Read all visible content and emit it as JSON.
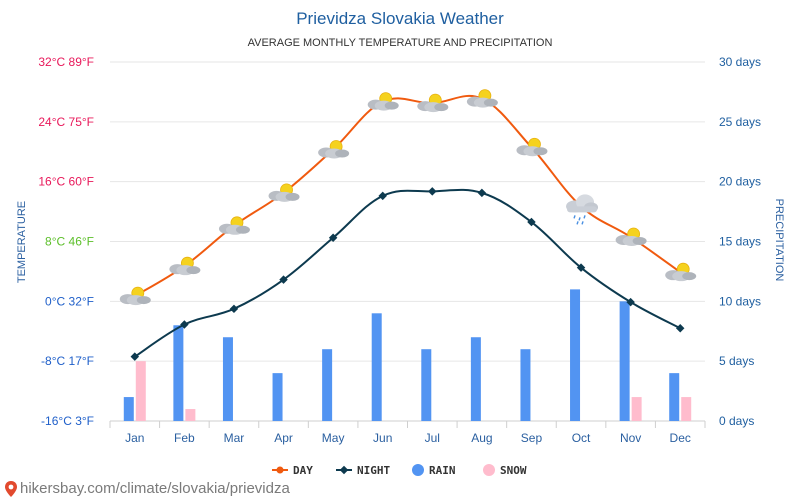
{
  "chart_data": {
    "type": "line",
    "title": "Prievidza Slovakia Weather",
    "subtitle": "AVERAGE MONTHLY TEMPERATURE AND PRECIPITATION",
    "ylabel_left": "TEMPERATURE",
    "ylabel_right": "PRECIPITATION",
    "categories": [
      "Jan",
      "Feb",
      "Mar",
      "Apr",
      "May",
      "Jun",
      "Jul",
      "Aug",
      "Sep",
      "Oct",
      "Nov",
      "Dec"
    ],
    "left_axis": {
      "min": -16,
      "max": 32,
      "ticks": [
        {
          "value": 32,
          "label": "32°C 89°F",
          "color": "#e8185a"
        },
        {
          "value": 24,
          "label": "24°C 75°F",
          "color": "#e8185a"
        },
        {
          "value": 16,
          "label": "16°C 60°F",
          "color": "#e8185a"
        },
        {
          "value": 8,
          "label": "8°C 46°F",
          "color": "#5cbf2a"
        },
        {
          "value": 0,
          "label": "0°C 32°F",
          "color": "#1f5fc9"
        },
        {
          "value": -8,
          "label": "-8°C 17°F",
          "color": "#1f5fc9"
        },
        {
          "value": -16,
          "label": "-16°C 3°F",
          "color": "#1f5fc9"
        }
      ]
    },
    "right_axis": {
      "min": 0,
      "max": 30,
      "ticks": [
        {
          "value": 30,
          "label": "30 days"
        },
        {
          "value": 25,
          "label": "25 days"
        },
        {
          "value": 20,
          "label": "20 days"
        },
        {
          "value": 15,
          "label": "15 days"
        },
        {
          "value": 10,
          "label": "10 days"
        },
        {
          "value": 5,
          "label": "5 days"
        },
        {
          "value": 0,
          "label": "0 days"
        }
      ]
    },
    "series": [
      {
        "name": "DAY",
        "kind": "line",
        "axis": "left",
        "color": "#f05a0f",
        "values": [
          0.7,
          4.7,
          10.1,
          14.5,
          20.3,
          26.7,
          26.5,
          27.1,
          20.6,
          12.7,
          8.6,
          3.9
        ]
      },
      {
        "name": "NIGHT",
        "kind": "line",
        "axis": "left",
        "color": "#0d3a4f",
        "values": [
          -7.4,
          -3.1,
          -1.0,
          2.9,
          8.5,
          14.1,
          14.7,
          14.5,
          10.6,
          4.5,
          -0.1,
          -3.6
        ]
      },
      {
        "name": "RAIN",
        "kind": "bar",
        "axis": "right",
        "color": "#5294f2",
        "values": [
          2,
          8,
          7,
          4,
          6,
          9,
          6,
          7,
          6,
          11,
          10,
          4
        ]
      },
      {
        "name": "SNOW",
        "kind": "bar",
        "axis": "right",
        "color": "#ffbccd",
        "values": [
          5,
          1,
          0,
          0,
          0,
          0,
          0,
          0,
          0,
          0,
          2,
          2
        ]
      }
    ],
    "weather_icons": [
      "partly-cloudy",
      "partly-cloudy",
      "partly-cloudy",
      "partly-cloudy",
      "partly-cloudy",
      "partly-cloudy",
      "partly-cloudy",
      "partly-cloudy",
      "partly-cloudy",
      "rain-cloud",
      "partly-cloudy",
      "partly-cloudy"
    ],
    "legend": [
      "DAY",
      "NIGHT",
      "RAIN",
      "SNOW"
    ],
    "legend_position": "bottom-center",
    "grid": true
  },
  "colors": {
    "title": "#1f5fa0",
    "right_axis_text": "#1f5fa0",
    "month_text": "#2a5fa0",
    "axis_title": "#2a5fa0"
  },
  "footer": {
    "url": "hikersbay.com/climate/slovakia/prievidza"
  }
}
